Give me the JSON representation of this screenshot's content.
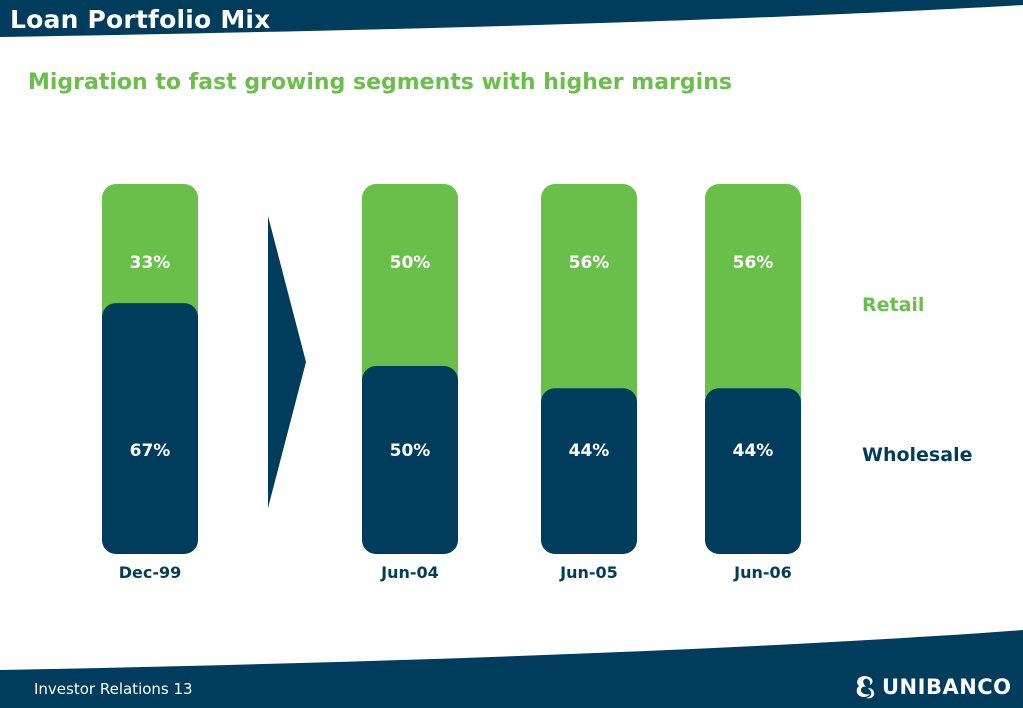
{
  "header": {
    "title": "Loan Portfolio Mix",
    "subtitle": "Migration to fast growing segments with higher margins"
  },
  "chart_data": {
    "type": "bar",
    "stacked": true,
    "percent": true,
    "categories": [
      "Dec-99",
      "Jun-04",
      "Jun-05",
      "Jun-06"
    ],
    "series": [
      {
        "name": "Wholesale",
        "values": [
          67,
          50,
          44,
          44
        ],
        "labels": [
          "67%",
          "50%",
          "44%",
          "44%"
        ],
        "color": "#003d5c"
      },
      {
        "name": "Retail",
        "values": [
          33,
          50,
          56,
          56
        ],
        "labels": [
          "33%",
          "50%",
          "56%",
          "56%"
        ],
        "color": "#6abf4b"
      }
    ],
    "legend_position": "right",
    "arrow_between": [
      "Dec-99",
      "Jun-04"
    ]
  },
  "footer": {
    "text": "Investor Relations 13",
    "logo_text": "UNIBANCO"
  },
  "colors": {
    "navy": "#003d5c",
    "green": "#6abf4b",
    "white": "#ffffff"
  }
}
